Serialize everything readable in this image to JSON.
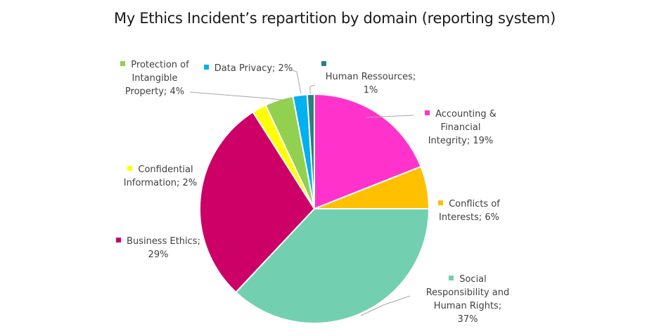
{
  "chart_data": {
    "type": "pie",
    "title": "My Ethics Incident’s repartition by domain (reporting system)",
    "legend_position": "data-labels-with-leader-lines",
    "start_angle_deg": 0,
    "direction": "clockwise",
    "slices": [
      {
        "name": "Accounting & Financial Integrity",
        "value": 19,
        "color": "#FF33CC",
        "label_lines": [
          "Accounting &",
          "Financial",
          "Integrity; 19%"
        ]
      },
      {
        "name": "Conflicts of Interests",
        "value": 6,
        "color": "#FFC000",
        "label_lines": [
          "Conflicts of",
          "Interests; 6%"
        ]
      },
      {
        "name": "Social Responsibility and Human Rights",
        "value": 37,
        "color": "#72D0B0",
        "label_lines": [
          "Social",
          "Responsibility and",
          "Human Rights;",
          "37%"
        ]
      },
      {
        "name": "Business Ethics",
        "value": 29,
        "color": "#CC0066",
        "label_lines": [
          "Business Ethics;",
          "29%"
        ]
      },
      {
        "name": "Confidential Information",
        "value": 2,
        "color": "#FFFF00",
        "label_lines": [
          "Confidential",
          "Information; 2%"
        ]
      },
      {
        "name": "Protection of Intangible Property",
        "value": 4,
        "color": "#92D050",
        "label_lines": [
          "Protection of",
          "Intangible",
          "Property; 4%"
        ]
      },
      {
        "name": "Data Privacy",
        "value": 2,
        "color": "#00B0F0",
        "label_lines": [
          "Data Privacy; 2%"
        ]
      },
      {
        "name": "Human Ressources",
        "value": 1,
        "color": "#2E7F7F",
        "label_lines": [
          "Human Ressources;",
          "1%"
        ]
      }
    ],
    "unit": "%"
  }
}
